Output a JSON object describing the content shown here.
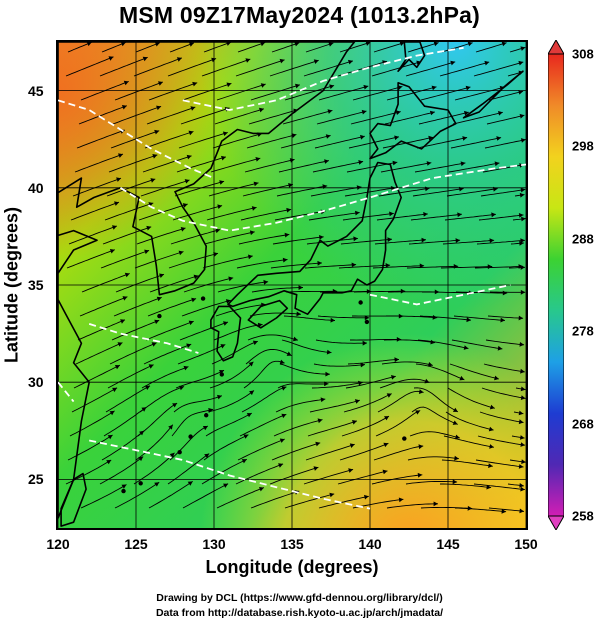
{
  "title": "MSM 09Z17May2024 (1013.2hPa)",
  "map": {
    "xlabel": "Longitude (degrees)",
    "ylabel": "Latitude  (degrees)",
    "lon_range": [
      120,
      150
    ],
    "lat_range": [
      22.5,
      47.5
    ],
    "x_ticks": [
      "120",
      "125",
      "130",
      "135",
      "140",
      "145",
      "150"
    ],
    "y_ticks": [
      "25",
      "30",
      "35",
      "40",
      "45"
    ],
    "field": "temperature (K) with streamlines",
    "colors": {
      "warm": "#f07828",
      "mid": "#88d800",
      "green": "#22c040",
      "cool": "#30c8e8",
      "coast": "#000000",
      "contour": "#ffffff"
    }
  },
  "colorbar": {
    "ticks": [
      "308",
      "298",
      "288",
      "278",
      "268",
      "258"
    ],
    "stops": [
      "#e8281e",
      "#f08a28",
      "#f2d21e",
      "#c8e614",
      "#3cd232",
      "#28c88c",
      "#1ea0e6",
      "#1e3cd2",
      "#5028b4",
      "#d21eb4"
    ]
  },
  "credits": {
    "line1": "Drawing by DCL (https://www.gfd-dennou.org/library/dcl/)",
    "line2": "Data from http://database.rish.kyoto-u.ac.jp/arch/jmadata/"
  }
}
